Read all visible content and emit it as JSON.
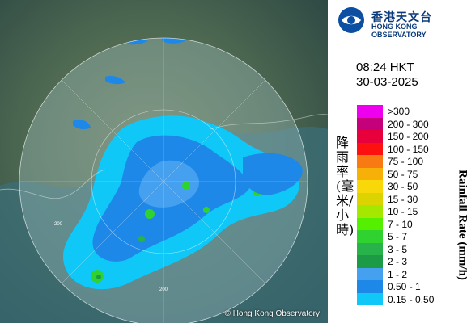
{
  "header": {
    "org_cn": "香港天文台",
    "org_en": "HONG KONG OBSERVATORY"
  },
  "timestamp": {
    "time": "08:24 HKT",
    "date": "30-03-2025"
  },
  "legend": {
    "title_cn": "降雨率(毫米/小時)",
    "title_en": "Rainfall Rate (mm/h)",
    "items": [
      {
        "range": ">300",
        "color": "#ee00ee"
      },
      {
        "range": "200 - 300",
        "color": "#c4007a"
      },
      {
        "range": "150 - 200",
        "color": "#e8003c"
      },
      {
        "range": "100 - 150",
        "color": "#fd1010"
      },
      {
        "range": "75 - 100",
        "color": "#f87a12"
      },
      {
        "range": "50 - 75",
        "color": "#f7b008"
      },
      {
        "range": "30 - 50",
        "color": "#f8d808"
      },
      {
        "range": "15 - 30",
        "color": "#dcd400"
      },
      {
        "range": "10 - 15",
        "color": "#a4e800"
      },
      {
        "range": "7 - 10",
        "color": "#55f000"
      },
      {
        "range": "5 - 7",
        "color": "#30d230"
      },
      {
        "range": "3 - 5",
        "color": "#27b24a"
      },
      {
        "range": "2 - 3",
        "color": "#1c9a46"
      },
      {
        "range": "1 - 2",
        "color": "#46a0f0"
      },
      {
        "range": "0.50 - 1",
        "color": "#1e88e8"
      },
      {
        "range": "0.15 - 0.50",
        "color": "#10c8f8"
      }
    ]
  },
  "map": {
    "range_ring_label": "200",
    "copyright": "© Hong Kong Observatory"
  }
}
